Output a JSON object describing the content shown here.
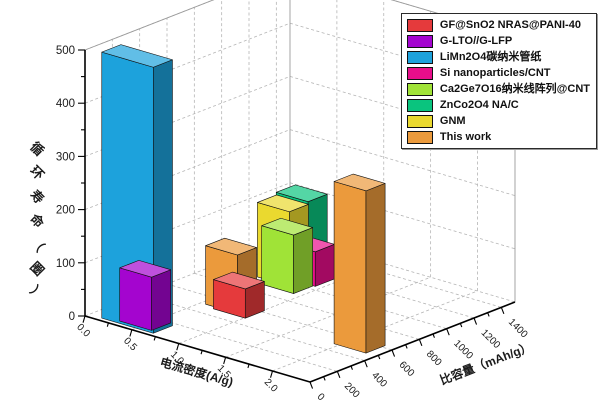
{
  "colors": {
    "background": "#ffffff",
    "axis": "#000000",
    "grid": "#b5b5b5",
    "wall_edge": "#9a9a9a",
    "text": "#1b1b1b",
    "legend_border": "#2a2a2a"
  },
  "chart_data": {
    "type": "bar3d",
    "title": "",
    "x_axis": {
      "label": "电流密度(A/g)",
      "ticks": [
        0,
        0.5,
        1,
        1.5,
        2
      ],
      "tick_labels": [
        "0.0",
        "0.5",
        "1.0",
        "1.5",
        "2.0"
      ],
      "range": [
        0,
        2.4
      ],
      "minor_step": 0.25
    },
    "y_axis": {
      "label": "循环寿命（圈）",
      "ticks": [
        0,
        100,
        200,
        300,
        400,
        500
      ],
      "range": [
        0,
        500
      ],
      "minor_step": 50
    },
    "z_axis": {
      "label": "比容量（mAh/g）",
      "ticks": [
        0,
        200,
        400,
        600,
        800,
        1000,
        1200,
        1400
      ],
      "range": [
        0,
        1500
      ],
      "minor_step": 100
    },
    "legend": [
      {
        "label": "GF@SnO2 NRAS@PANI-40",
        "color": "#e53a3c"
      },
      {
        "label": "G-LTO//G-LFP",
        "color": "#a405cf"
      },
      {
        "label": "LiMn2O4碳纳米管纸",
        "color": "#1da2dc"
      },
      {
        "label": "Si nanoparticles/CNT",
        "color": "#e80e8b"
      },
      {
        "label": "Ca2Ge7O16纳米线阵列@CNT",
        "color": "#a0e337"
      },
      {
        "label": "ZnCo2O4 NA/C",
        "color": "#0ac47e"
      },
      {
        "label": "GNM",
        "color": "#ead92f"
      },
      {
        "label": "This work",
        "color": "#eb9a3c"
      }
    ],
    "bars": [
      {
        "series": "LiMn2O4碳纳米管纸",
        "color": "#1da2dc",
        "current_density_A_g": 0.41,
        "specific_capacity_mAh_g": 100,
        "cycle_life": 500,
        "width_x": 0.55
      },
      {
        "series": "G-LTO//G-LFP",
        "color": "#a405cf",
        "current_density_A_g": 0.46,
        "specific_capacity_mAh_g": 125,
        "cycle_life": 100
      },
      {
        "series": "This work",
        "color": "#eb9a3c",
        "current_density_A_g": 0.72,
        "specific_capacity_mAh_g": 575,
        "cycle_life": 110
      },
      {
        "series": "GF@SnO2 NRAS@PANI-40",
        "color": "#e53a3c",
        "current_density_A_g": 0.84,
        "specific_capacity_mAh_g": 550,
        "cycle_life": 55
      },
      {
        "series": "Ca2Ge7O16纳米线阵列@CNT",
        "color": "#a0e337",
        "current_density_A_g": 0.75,
        "specific_capacity_mAh_g": 965,
        "cycle_life": 110
      },
      {
        "series": "GNM",
        "color": "#ead92f",
        "current_density_A_g": 0.61,
        "specific_capacity_mAh_g": 1030,
        "cycle_life": 140
      },
      {
        "series": "ZnCo2O4 NA/C",
        "color": "#0ac47e",
        "current_density_A_g": 0.65,
        "specific_capacity_mAh_g": 1140,
        "cycle_life": 150
      },
      {
        "series": "Si nanoparticles/CNT",
        "color": "#e80e8b",
        "current_density_A_g": 0.77,
        "specific_capacity_mAh_g": 1110,
        "cycle_life": 65
      },
      {
        "series": "This work",
        "color": "#eb9a3c",
        "current_density_A_g": 2.12,
        "specific_capacity_mAh_g": 555,
        "cycle_life": 305
      }
    ]
  }
}
